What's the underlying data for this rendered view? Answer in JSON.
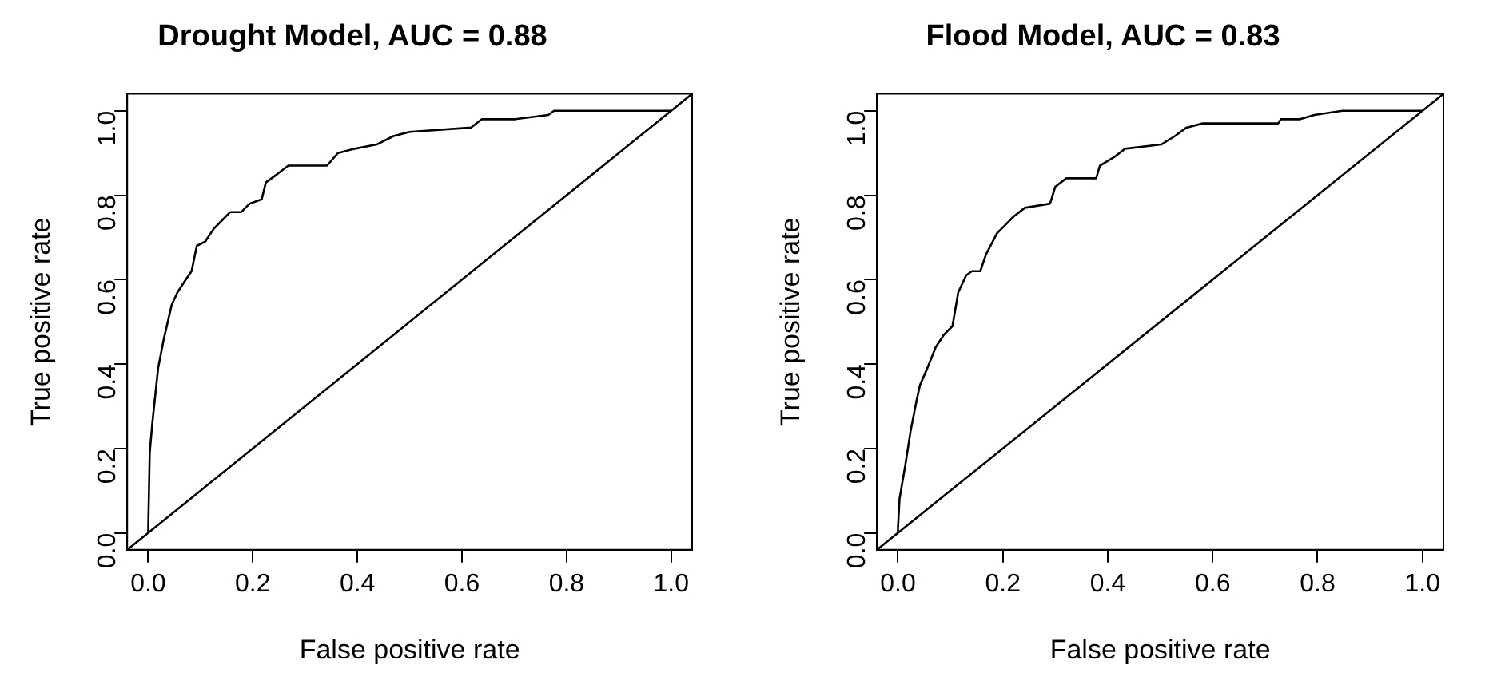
{
  "chart_data": [
    {
      "type": "line",
      "title": "Drought Model, AUC = 0.88",
      "xlabel": "False positive rate",
      "ylabel": "True positive rate",
      "xlim": [
        -0.04,
        1.04
      ],
      "ylim": [
        -0.04,
        1.04
      ],
      "xticks": [
        {
          "value": 0,
          "label": "0.0"
        },
        {
          "value": 0.2,
          "label": "0.2"
        },
        {
          "value": 0.4,
          "label": "0.4"
        },
        {
          "value": 0.6,
          "label": "0.6"
        },
        {
          "value": 0.8,
          "label": "0.8"
        },
        {
          "value": 1,
          "label": "1.0"
        }
      ],
      "yticks": [
        {
          "value": 0,
          "label": "0.0"
        },
        {
          "value": 0.2,
          "label": "0.2"
        },
        {
          "value": 0.4,
          "label": "0.4"
        },
        {
          "value": 0.6,
          "label": "0.6"
        },
        {
          "value": 0.8,
          "label": "0.8"
        },
        {
          "value": 1,
          "label": "1.0"
        }
      ],
      "marker": "none",
      "line_style": "solid",
      "legend": false,
      "series": [
        {
          "color": "#000000",
          "x": [
            0,
            0.003,
            0.008,
            0.019,
            0.03,
            0.045,
            0.056,
            0.072,
            0.083,
            0.093,
            0.109,
            0.125,
            0.141,
            0.157,
            0.178,
            0.194,
            0.217,
            0.225,
            0.247,
            0.268,
            0.342,
            0.363,
            0.395,
            0.437,
            0.469,
            0.5,
            0.617,
            0.638,
            0.702,
            0.765,
            0.776,
            0.955,
            0.966,
            1
          ],
          "values": [
            0,
            0.19,
            0.26,
            0.39,
            0.46,
            0.54,
            0.57,
            0.6,
            0.62,
            0.68,
            0.69,
            0.72,
            0.74,
            0.76,
            0.76,
            0.78,
            0.79,
            0.83,
            0.85,
            0.87,
            0.87,
            0.9,
            0.91,
            0.92,
            0.94,
            0.95,
            0.96,
            0.98,
            0.98,
            0.99,
            1,
            1,
            1,
            1
          ]
        },
        {
          "color": "#000000",
          "x": [
            -0.04,
            1.04
          ],
          "values": [
            -0.04,
            1.04
          ]
        }
      ]
    },
    {
      "type": "line",
      "title": "Flood Model, AUC = 0.83",
      "xlabel": "False positive rate",
      "ylabel": "True positive rate",
      "xlim": [
        -0.04,
        1.04
      ],
      "ylim": [
        -0.04,
        1.04
      ],
      "xticks": [
        {
          "value": 0,
          "label": "0.0"
        },
        {
          "value": 0.2,
          "label": "0.2"
        },
        {
          "value": 0.4,
          "label": "0.4"
        },
        {
          "value": 0.6,
          "label": "0.6"
        },
        {
          "value": 0.8,
          "label": "0.8"
        },
        {
          "value": 1,
          "label": "1.0"
        }
      ],
      "yticks": [
        {
          "value": 0,
          "label": "0.0"
        },
        {
          "value": 0.2,
          "label": "0.2"
        },
        {
          "value": 0.4,
          "label": "0.4"
        },
        {
          "value": 0.6,
          "label": "0.6"
        },
        {
          "value": 0.8,
          "label": "0.8"
        },
        {
          "value": 1,
          "label": "1.0"
        }
      ],
      "marker": "none",
      "line_style": "solid",
      "legend": false,
      "series": [
        {
          "color": "#000000",
          "x": [
            0,
            0,
            0.003,
            0.014,
            0.024,
            0.035,
            0.042,
            0.056,
            0.072,
            0.088,
            0.104,
            0.115,
            0.13,
            0.141,
            0.157,
            0.168,
            0.189,
            0.205,
            0.221,
            0.242,
            0.29,
            0.3,
            0.321,
            0.378,
            0.385,
            0.412,
            0.433,
            0.502,
            0.528,
            0.55,
            0.581,
            0.725,
            0.73,
            0.767,
            0.794,
            0.847,
            1
          ],
          "values": [
            0,
            0.01,
            0.08,
            0.16,
            0.24,
            0.31,
            0.35,
            0.39,
            0.44,
            0.47,
            0.49,
            0.57,
            0.61,
            0.62,
            0.62,
            0.66,
            0.71,
            0.73,
            0.75,
            0.77,
            0.78,
            0.82,
            0.84,
            0.84,
            0.87,
            0.89,
            0.91,
            0.92,
            0.94,
            0.96,
            0.97,
            0.97,
            0.98,
            0.98,
            0.99,
            1,
            1
          ]
        },
        {
          "color": "#000000",
          "x": [
            -0.04,
            1.04
          ],
          "values": [
            -0.04,
            1.04
          ]
        }
      ]
    }
  ]
}
